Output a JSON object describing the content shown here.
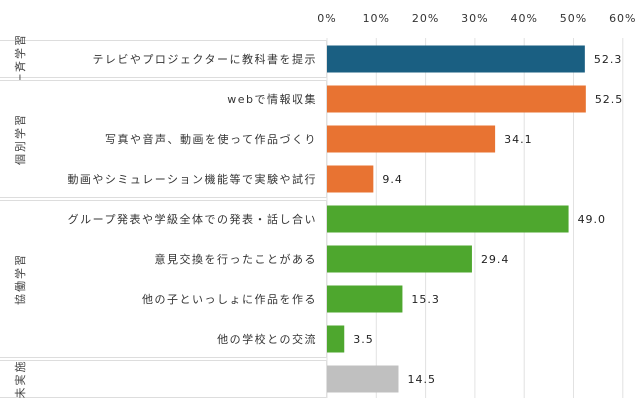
{
  "chart_data": {
    "type": "bar",
    "orientation": "horizontal",
    "title": "",
    "xlabel": "",
    "ylabel": "",
    "xlim": [
      0,
      60
    ],
    "x_ticks": [
      "0%",
      "10%",
      "20%",
      "30%",
      "40%",
      "50%",
      "60%"
    ],
    "x_axis_position": "top",
    "grid": true,
    "legend": "none",
    "groups": [
      {
        "label": "一斉学習",
        "color": "#1a5f82",
        "items": [
          {
            "category": "テレビやプロジェクターに教科書を提示",
            "value": 52.3,
            "value_label": "52.3"
          }
        ]
      },
      {
        "label": "個別学習",
        "color": "#e87332",
        "items": [
          {
            "category": "webで情報収集",
            "value": 52.5,
            "value_label": "52.5"
          },
          {
            "category": "写真や音声、動画を使って作品づくり",
            "value": 34.1,
            "value_label": "34.1"
          },
          {
            "category": "動画やシミュレーション機能等で実験や試行",
            "value": 9.4,
            "value_label": "9.4"
          }
        ]
      },
      {
        "label": "協働学習",
        "color": "#4ea72e",
        "items": [
          {
            "category": "グループ発表や学級全体での発表・話し合い",
            "value": 49.0,
            "value_label": "49.0"
          },
          {
            "category": "意見交換を行ったことがある",
            "value": 29.4,
            "value_label": "29.4"
          },
          {
            "category": "他の子といっしょに作品を作る",
            "value": 15.3,
            "value_label": "15.3"
          },
          {
            "category": "他の学校との交流",
            "value": 3.5,
            "value_label": "3.5"
          }
        ]
      },
      {
        "label": "未実施",
        "color": "#c0c0c0",
        "items": [
          {
            "category": "",
            "value": 14.5,
            "value_label": "14.5"
          }
        ]
      }
    ]
  }
}
